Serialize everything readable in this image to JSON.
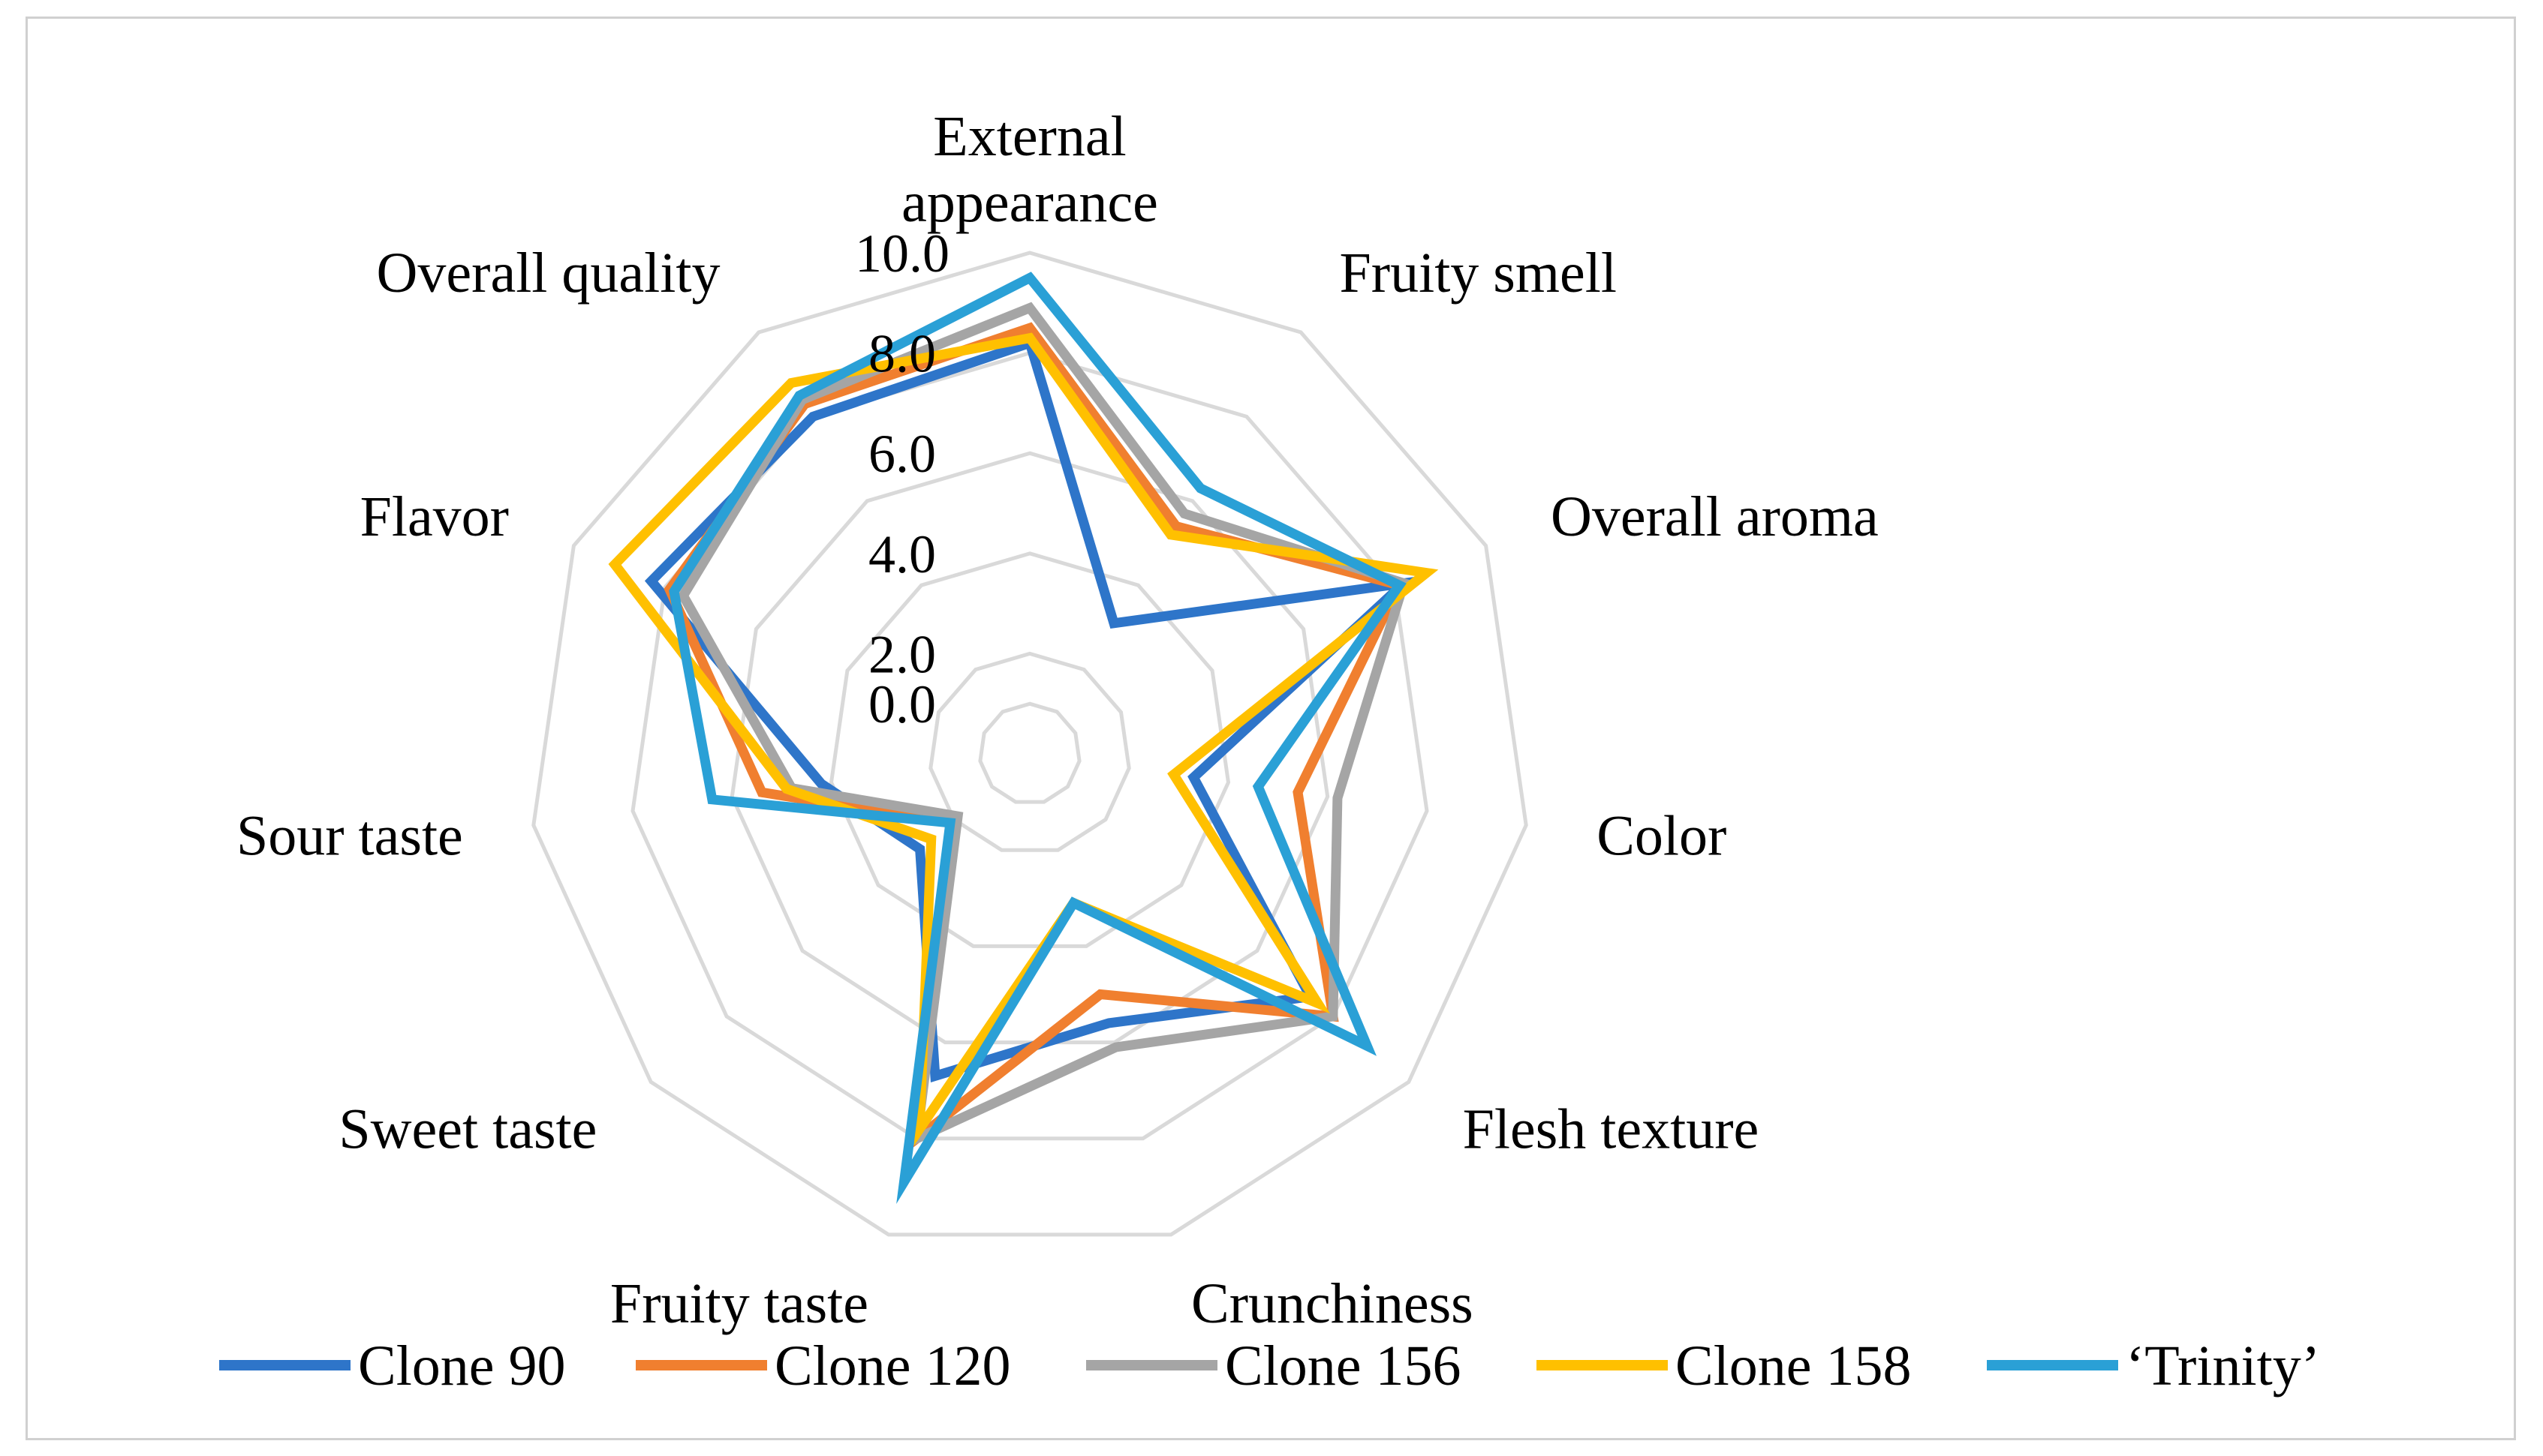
{
  "chart_data": {
    "type": "radar",
    "title": "",
    "categories": [
      [
        "External",
        "appearance"
      ],
      [
        "Fruity smell"
      ],
      [
        "Overall aroma"
      ],
      [
        "Color"
      ],
      [
        "Flesh texture"
      ],
      [
        "Crunchiness"
      ],
      [
        "Fruity taste"
      ],
      [
        "Sweet taste"
      ],
      [
        "Sour taste"
      ],
      [
        "Flavor"
      ],
      [
        "Overall quality"
      ]
    ],
    "rlim": [
      0,
      10
    ],
    "ticks": [
      "0.0",
      "2.0",
      "4.0",
      "6.0",
      "8.0",
      "10.0"
    ],
    "tick_values": [
      0,
      2,
      4,
      6,
      8,
      10
    ],
    "gridline_color": "#d9d9d9",
    "legend_position": "bottom",
    "series": [
      {
        "name": "Clone 90",
        "color": "#2e75c9",
        "values": [
          8.2,
          3.1,
          8.2,
          3.3,
          7.4,
          5.6,
          6.7,
          2.9,
          4.2,
          8.3,
          8.0
        ]
      },
      {
        "name": "Clone 120",
        "color": "#f07f2f",
        "values": [
          8.5,
          5.4,
          8.1,
          5.4,
          8.0,
          5.0,
          8.0,
          2.1,
          5.4,
          7.9,
          8.3
        ]
      },
      {
        "name": "Clone 156",
        "color": "#a5a5a5",
        "values": [
          8.9,
          5.7,
          8.2,
          6.2,
          8.0,
          6.1,
          8.0,
          1.9,
          4.8,
          7.6,
          8.4
        ]
      },
      {
        "name": "Clone 158",
        "color": "#ffc000",
        "values": [
          8.3,
          5.2,
          8.7,
          2.9,
          7.6,
          3.1,
          7.8,
          2.6,
          4.9,
          9.1,
          8.8
        ]
      },
      {
        "name": "‘Trinity’",
        "color": "#2aa0d6",
        "values": [
          9.5,
          6.3,
          8.1,
          4.6,
          8.9,
          3.1,
          8.9,
          2.1,
          6.4,
          7.8,
          8.5
        ]
      }
    ]
  }
}
